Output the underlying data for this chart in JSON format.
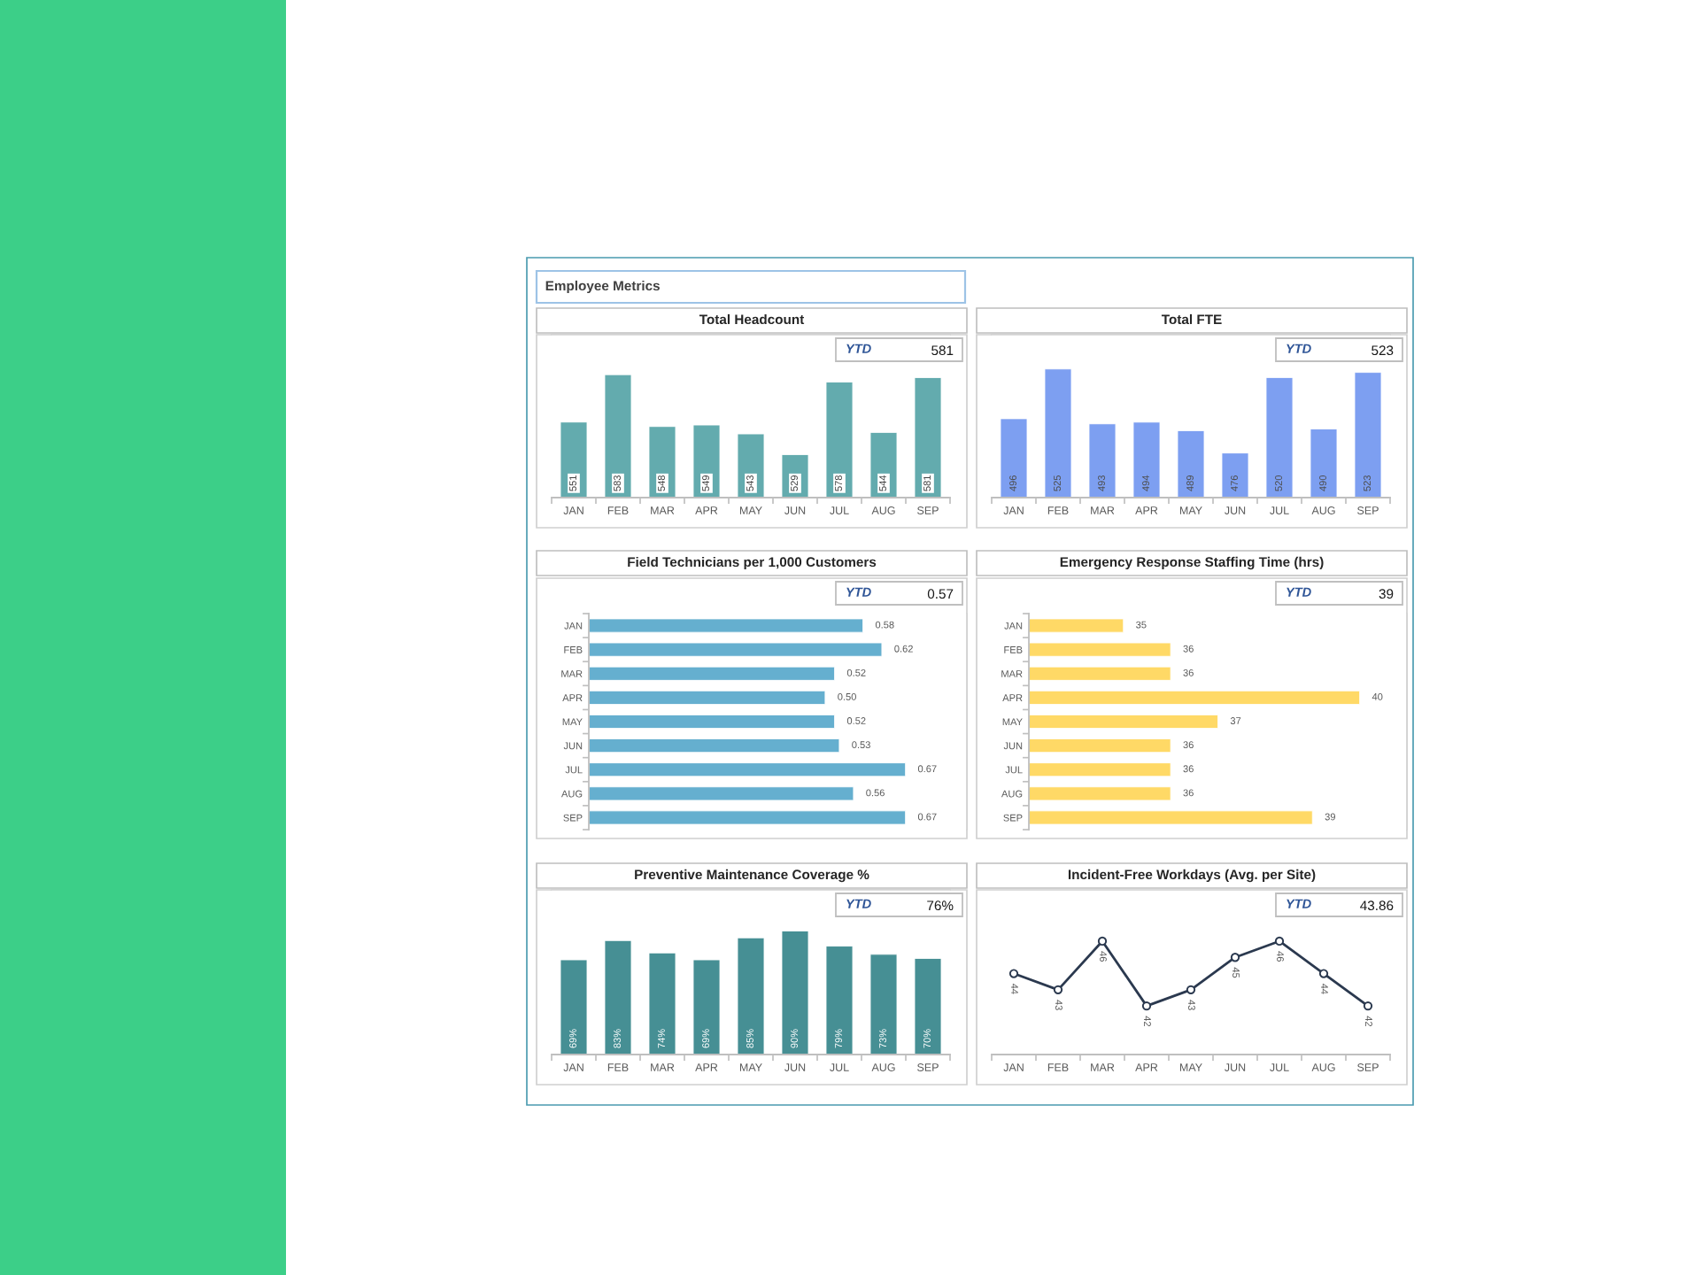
{
  "chart_data": [
    {
      "type": "other",
      "title": "Employee Metrics"
    },
    {
      "type": "bar",
      "title": "Total Headcount",
      "categories": [
        "JAN",
        "FEB",
        "MAR",
        "APR",
        "MAY",
        "JUN",
        "JUL",
        "AUG",
        "SEP"
      ],
      "values": [
        551,
        583,
        548,
        549,
        543,
        529,
        578,
        544,
        581
      ],
      "color": "#63abae",
      "ylim": [
        500,
        610
      ],
      "tick_labels": "x",
      "data_labels": true,
      "annotations": [
        "YTD",
        "581"
      ]
    },
    {
      "type": "bar",
      "title": "Total FTE",
      "categories": [
        "JAN",
        "FEB",
        "MAR",
        "APR",
        "MAY",
        "JUN",
        "JUL",
        "AUG",
        "SEP"
      ],
      "values": [
        496,
        525,
        493,
        494,
        489,
        476,
        520,
        490,
        523
      ],
      "color": "#7d9ff1",
      "ylim": [
        450,
        545
      ],
      "tick_labels": "x",
      "data_labels": true,
      "annotations": [
        "YTD",
        "523"
      ]
    },
    {
      "type": "bar",
      "orientation": "horizontal",
      "title": "Field Technicians per 1,000 Customers",
      "categories": [
        "JAN",
        "FEB",
        "MAR",
        "APR",
        "MAY",
        "JUN",
        "JUL",
        "AUG",
        "SEP"
      ],
      "values": [
        0.58,
        0.62,
        0.52,
        0.5,
        0.52,
        0.53,
        0.67,
        0.56,
        0.67
      ],
      "value_labels": [
        "0.58",
        "0.62",
        "0.52",
        "0.50",
        "0.52",
        "0.53",
        "0.67",
        "0.56",
        "0.67"
      ],
      "color": "#65afcf",
      "xlim": [
        0,
        0.8
      ],
      "tick_labels": "y",
      "annotations": [
        "YTD",
        "0.57"
      ]
    },
    {
      "type": "bar",
      "orientation": "horizontal",
      "title": "Emergency Response Staffing Time (hrs)",
      "categories": [
        "JAN",
        "FEB",
        "MAR",
        "APR",
        "MAY",
        "JUN",
        "JUL",
        "AUG",
        "SEP"
      ],
      "values": [
        35,
        36,
        36,
        40,
        37,
        36,
        36,
        36,
        39
      ],
      "color": "#ffd966",
      "xlim": [
        33,
        41
      ],
      "tick_labels": "y",
      "data_labels": true,
      "annotations": [
        "YTD",
        "39"
      ]
    },
    {
      "type": "bar",
      "title": "Preventive Maintenance Coverage %",
      "categories": [
        "JAN",
        "FEB",
        "MAR",
        "APR",
        "MAY",
        "JUN",
        "JUL",
        "AUG",
        "SEP"
      ],
      "values": [
        69,
        83,
        74,
        69,
        85,
        90,
        79,
        73,
        70
      ],
      "value_labels": [
        "69%",
        "83%",
        "74%",
        "69%",
        "85%",
        "90%",
        "79%",
        "73%",
        "70%"
      ],
      "color": "#468f94",
      "ylim": [
        0,
        120
      ],
      "tick_labels": "x",
      "annotations": [
        "YTD",
        "76%"
      ]
    },
    {
      "type": "line",
      "title": "Incident-Free Workdays (Avg. per Site)",
      "categories": [
        "JAN",
        "FEB",
        "MAR",
        "APR",
        "MAY",
        "JUN",
        "JUL",
        "AUG",
        "SEP"
      ],
      "values": [
        44,
        43,
        46,
        42,
        43,
        45,
        46,
        44,
        42
      ],
      "color": "#2b394f",
      "tick_labels": "x",
      "data_labels": true,
      "marker": "circle",
      "line_style": "solid",
      "annotations": [
        "YTD",
        "43.86"
      ]
    }
  ]
}
